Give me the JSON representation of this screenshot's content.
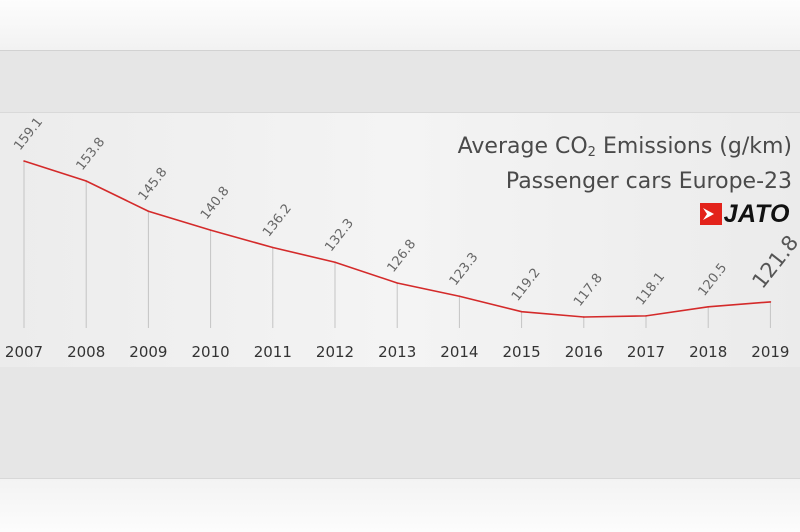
{
  "chart_data": {
    "type": "line",
    "title": "Average CO₂ Emissions (g/km)",
    "subtitle": "Passenger cars Europe-23",
    "categories": [
      "2007",
      "2008",
      "2009",
      "2010",
      "2011",
      "2012",
      "2013",
      "2014",
      "2015",
      "2016",
      "2017",
      "2018",
      "2019"
    ],
    "series": [
      {
        "name": "Average CO2 Emissions (g/km)",
        "values": [
          159.1,
          153.8,
          145.8,
          140.8,
          136.2,
          132.3,
          126.8,
          123.3,
          119.2,
          117.8,
          118.1,
          120.5,
          121.8
        ],
        "color": "#d42a2a"
      }
    ],
    "value_labels": [
      "159.1",
      "153.8",
      "145.8",
      "140.8",
      "136.2",
      "132.3",
      "126.8",
      "123.3",
      "119.2",
      "117.8",
      "118.1",
      "120.5",
      "121.8"
    ],
    "highlight_last_label": true,
    "xlabel": "",
    "ylabel": "",
    "grid": "vertical drop lines per year"
  },
  "title": {
    "line1_prefix": "Average CO",
    "line1_sub": "2",
    "line1_suffix": " Emissions (g/km)",
    "line2": "Passenger cars Europe-23"
  },
  "brand": {
    "name": "JATO",
    "icon": "jato-logo-icon",
    "color": "#e3231b"
  }
}
